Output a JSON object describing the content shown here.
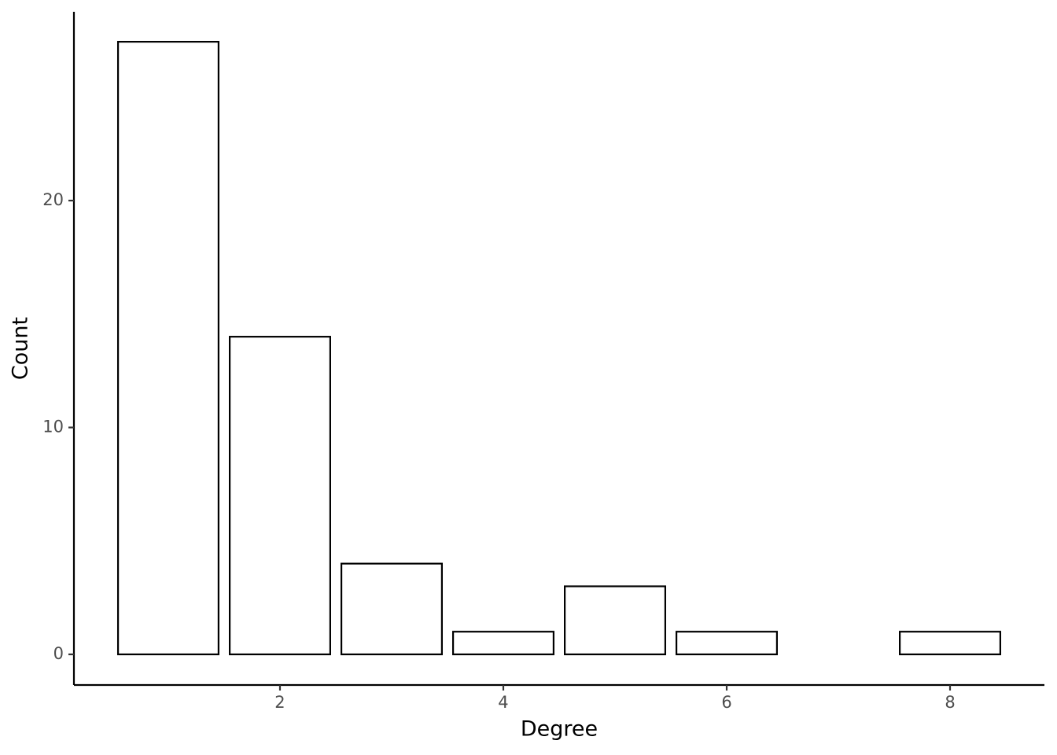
{
  "chart_data": {
    "type": "bar",
    "x_label": "Degree",
    "y_label": "Count",
    "x": [
      1,
      2,
      3,
      4,
      5,
      6,
      8
    ],
    "values": [
      27,
      14,
      4,
      1,
      3,
      1,
      1
    ],
    "color": "#ffffff",
    "edge_color": "#000000",
    "xlim": [
      0.155,
      8.845
    ],
    "ylim": [
      -1.35,
      28.32
    ],
    "xticks": [
      2,
      4,
      6,
      8
    ],
    "yticks": [
      0,
      10,
      20
    ],
    "grid": false
  }
}
